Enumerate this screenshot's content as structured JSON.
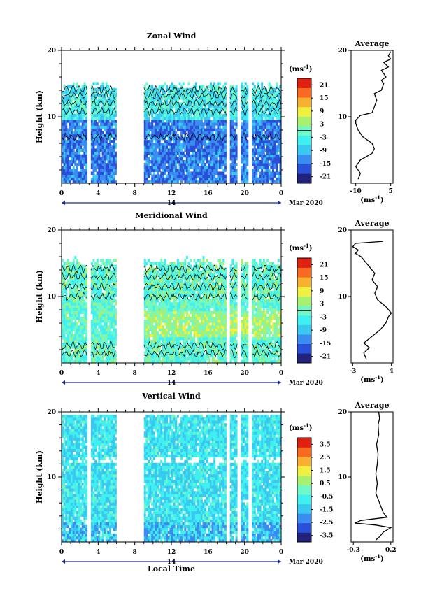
{
  "chart_data": [
    {
      "type": "heatmap",
      "title": "Zonal Wind",
      "ylabel": "Height (km)",
      "ylim": [
        0,
        20
      ],
      "yticks": [
        "20",
        "10"
      ],
      "xticks": [
        "0",
        "4",
        "8",
        "12",
        "16",
        "20",
        "0"
      ],
      "date_label": "14",
      "month_label": "Mar 2020",
      "xlabel": "",
      "colorbar": {
        "unit": "(ms",
        "unit_sup": "-1",
        "unit_close": ")",
        "ticks": [
          "21",
          "15",
          "9",
          "3",
          "-3",
          "-9",
          "-15",
          "-21"
        ],
        "range": [
          -24,
          24
        ]
      },
      "profile": {
        "title": "Average",
        "yticks": [
          "20",
          "10"
        ],
        "xticks": [
          "-10",
          "5"
        ],
        "xlim": [
          -12,
          6
        ],
        "xunit": "(ms",
        "xunit_sup": "-1",
        "xunit_close": ")",
        "points": [
          [
            -9,
            0.6
          ],
          [
            -8,
            1.5
          ],
          [
            -10,
            2.5
          ],
          [
            -8,
            3.5
          ],
          [
            -3,
            4.5
          ],
          [
            -2,
            5.2
          ],
          [
            -3,
            6
          ],
          [
            -7,
            7
          ],
          [
            -9,
            8
          ],
          [
            -10,
            9
          ],
          [
            -10,
            9.5
          ],
          [
            -8,
            10.2
          ],
          [
            -3,
            10.6
          ],
          [
            -2,
            11.5
          ],
          [
            -1,
            12.5
          ],
          [
            -2,
            13.5
          ],
          [
            1,
            14
          ],
          [
            2,
            15
          ],
          [
            1,
            15.5
          ],
          [
            3,
            16
          ],
          [
            1,
            17
          ],
          [
            4,
            17.5
          ],
          [
            2,
            18.2
          ],
          [
            5,
            18.7
          ],
          [
            4,
            19.2
          ],
          [
            5,
            19.8
          ]
        ]
      }
    },
    {
      "type": "heatmap",
      "title": "Meridional Wind",
      "ylabel": "Height (km)",
      "ylim": [
        0,
        20
      ],
      "yticks": [
        "20",
        "10"
      ],
      "xticks": [
        "0",
        "4",
        "8",
        "12",
        "16",
        "20",
        "0"
      ],
      "date_label": "14",
      "month_label": "Mar 2020",
      "xlabel": "",
      "colorbar": {
        "unit": "(ms",
        "unit_sup": "-1",
        "unit_close": ")",
        "ticks": [
          "21",
          "15",
          "9",
          "3",
          "-3",
          "-9",
          "-15",
          "-21"
        ],
        "range": [
          -24,
          24
        ]
      },
      "profile": {
        "title": "Average",
        "yticks": [
          "20",
          "10"
        ],
        "xticks": [
          "-3",
          "4"
        ],
        "xlim": [
          -3.3,
          4.3
        ],
        "xunit": "(ms",
        "xunit_sup": "-1",
        "xunit_close": ")",
        "points": [
          [
            -0.5,
            0.5
          ],
          [
            -1,
            1.5
          ],
          [
            0,
            2.3
          ],
          [
            -1,
            3
          ],
          [
            0.5,
            4
          ],
          [
            2,
            5
          ],
          [
            3,
            6
          ],
          [
            3.5,
            7
          ],
          [
            4,
            7.5
          ],
          [
            3,
            8.5
          ],
          [
            1.5,
            9.5
          ],
          [
            1,
            10.5
          ],
          [
            1.5,
            11.5
          ],
          [
            0.5,
            12.5
          ],
          [
            1,
            13.5
          ],
          [
            0,
            14.5
          ],
          [
            -0.5,
            15
          ],
          [
            -1,
            15.5
          ],
          [
            -1.5,
            16
          ],
          [
            -2.5,
            16.5
          ],
          [
            -2,
            17
          ],
          [
            -3,
            17.5
          ],
          [
            -2.5,
            18
          ],
          [
            2.5,
            18.3
          ]
        ]
      }
    },
    {
      "type": "heatmap",
      "title": "Vertical Wind",
      "ylabel": "Height (km)",
      "ylim": [
        0,
        20
      ],
      "yticks": [
        "20",
        "10"
      ],
      "xticks": [
        "0",
        "4",
        "8",
        "12",
        "16",
        "20",
        "0"
      ],
      "date_label": "14",
      "month_label": "Mar 2020",
      "xlabel": "Local Time",
      "colorbar": {
        "unit": "(ms",
        "unit_sup": "-1",
        "unit_close": ")",
        "ticks": [
          "3.5",
          "2.5",
          "1.5",
          "0.5",
          "-0.5",
          "-1.5",
          "-2.5",
          "-3.5"
        ],
        "range": [
          -4,
          4
        ]
      },
      "profile": {
        "title": "Average",
        "yticks": [
          "20",
          "10"
        ],
        "xticks": [
          "-0.3",
          "0.2"
        ],
        "xlim": [
          -0.33,
          0.23
        ],
        "xunit": "(ms",
        "xunit_sup": "-1",
        "xunit_close": ")",
        "points": [
          [
            0,
            0.3
          ],
          [
            0.05,
            0.8
          ],
          [
            0.1,
            1.5
          ],
          [
            0.2,
            2.2
          ],
          [
            0,
            2.6
          ],
          [
            -0.28,
            2.9
          ],
          [
            -0.2,
            3.3
          ],
          [
            0.15,
            3.8
          ],
          [
            0.1,
            4.5
          ],
          [
            0.05,
            6
          ],
          [
            0,
            7.5
          ],
          [
            0.02,
            9
          ],
          [
            0,
            10.5
          ],
          [
            0.02,
            12
          ],
          [
            0.03,
            13.5
          ],
          [
            0.01,
            15
          ],
          [
            0.04,
            16.5
          ],
          [
            0.03,
            18
          ],
          [
            0.05,
            19
          ],
          [
            0.04,
            20
          ]
        ]
      }
    }
  ],
  "colors": {
    "scale": [
      "#22227a",
      "#2a4fd8",
      "#3a8cf0",
      "#38c8f0",
      "#40f0f0",
      "#70f8c8",
      "#a8f070",
      "#f0f040",
      "#f8b030",
      "#f86a20",
      "#e02010"
    ]
  }
}
